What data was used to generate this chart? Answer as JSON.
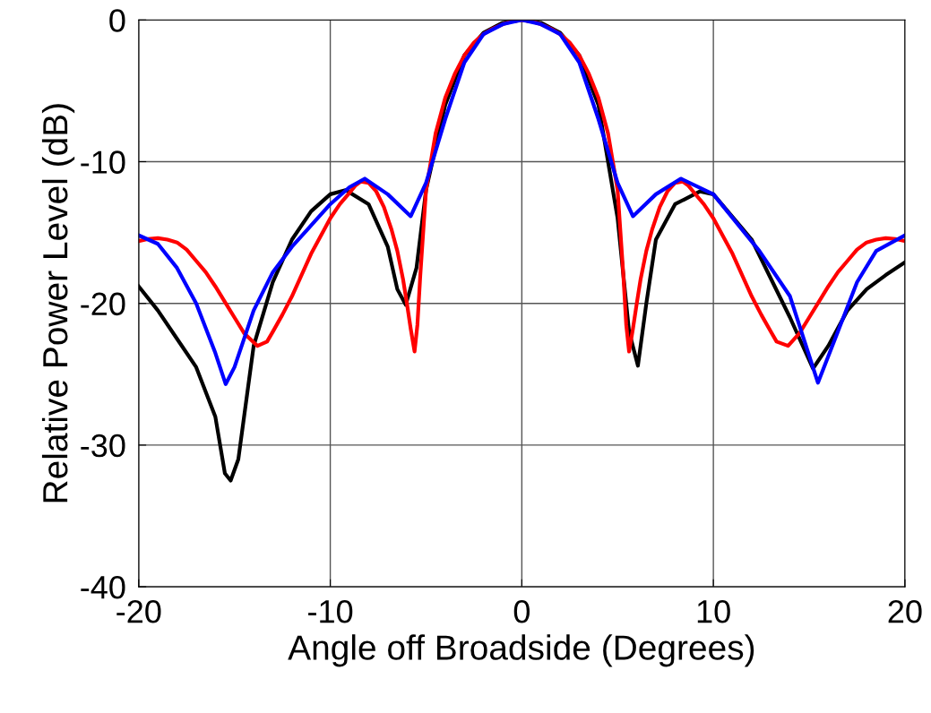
{
  "chart_data": {
    "type": "line",
    "xlabel": "Angle off Broadside (Degrees)",
    "ylabel": "Relative Power Level (dB)",
    "xlim": [
      -20,
      20
    ],
    "ylim": [
      -40,
      0
    ],
    "xticks": [
      -20,
      -10,
      0,
      10,
      20
    ],
    "yticks": [
      -40,
      -30,
      -20,
      -10,
      0
    ],
    "grid": true,
    "marker": "none",
    "line_style": "solid",
    "series": [
      {
        "color": "#000000",
        "x": [
          -20,
          -19,
          -18,
          -17,
          -16,
          -15.5,
          -15.2,
          -14.8,
          -14.3,
          -14,
          -13,
          -12,
          -11,
          -10,
          -9.2,
          -8,
          -7,
          -6.5,
          -6.06,
          -5.5,
          -5,
          -4,
          -3,
          -2,
          -1,
          0,
          1,
          2,
          3,
          4,
          5,
          5.6,
          6.06,
          6.5,
          7,
          8,
          9.3,
          10,
          12,
          14,
          15.2,
          16,
          17,
          18,
          19,
          20
        ],
        "values": [
          -18.8,
          -20.5,
          -22.5,
          -24.5,
          -28,
          -32,
          -32.5,
          -31,
          -26,
          -23,
          -18.5,
          -15.5,
          -13.5,
          -12.3,
          -12,
          -13,
          -16,
          -19,
          -20.1,
          -17.5,
          -12,
          -6,
          -2.5,
          -0.9,
          -0.2,
          0,
          -0.2,
          -0.9,
          -2.5,
          -6,
          -14,
          -22,
          -24.4,
          -20,
          -15.5,
          -13,
          -12.1,
          -12.3,
          -15.5,
          -21,
          -24.6,
          -23,
          -20.5,
          -19,
          -18,
          -17.1
        ]
      },
      {
        "color": "#ff0000",
        "x": [
          -20,
          -19.5,
          -19,
          -18.5,
          -18,
          -17.5,
          -17,
          -16.5,
          -16,
          -15.5,
          -15,
          -14.5,
          -13.8,
          -13.3,
          -13,
          -12.5,
          -12,
          -11,
          -10,
          -9.5,
          -9,
          -8.7,
          -8.4,
          -8,
          -7.6,
          -7.2,
          -6.8,
          -6.5,
          -6.2,
          -6,
          -5.8,
          -5.6,
          -5.45,
          -5.3,
          -5,
          -4.5,
          -4,
          -3.5,
          -3,
          -2.5,
          -2,
          -1.5,
          -1,
          -0.5,
          0,
          0.5,
          1,
          1.5,
          2,
          2.5,
          3,
          3.5,
          4,
          4.5,
          5,
          5.3,
          5.45,
          5.6,
          5.8,
          6,
          6.2,
          6.5,
          6.8,
          7.2,
          7.6,
          8,
          8.4,
          8.7,
          9,
          9.5,
          10,
          11,
          12,
          12.5,
          13,
          13.3,
          13.9,
          14.5,
          15,
          15.5,
          16,
          16.5,
          17,
          17.5,
          18,
          18.5,
          19,
          19.5,
          20
        ],
        "values": [
          -15.6,
          -15.45,
          -15.4,
          -15.5,
          -15.7,
          -16.2,
          -17,
          -17.8,
          -18.8,
          -19.9,
          -21,
          -22.1,
          -23,
          -22.7,
          -22,
          -20.8,
          -19.5,
          -16.5,
          -14,
          -13,
          -12.2,
          -11.7,
          -11.4,
          -11.5,
          -12.1,
          -13.2,
          -14.8,
          -16.3,
          -18.3,
          -20,
          -21.8,
          -23.4,
          -21.5,
          -18,
          -12,
          -8,
          -5.5,
          -3.8,
          -2.5,
          -1.6,
          -1,
          -0.6,
          -0.3,
          -0.1,
          0,
          -0.1,
          -0.3,
          -0.6,
          -1,
          -1.6,
          -2.5,
          -3.8,
          -5.5,
          -8,
          -12,
          -18,
          -21.5,
          -23.4,
          -21.8,
          -20,
          -18.3,
          -16.3,
          -14.8,
          -13.2,
          -12.1,
          -11.5,
          -11.4,
          -11.7,
          -12.2,
          -13,
          -14,
          -16.5,
          -19.5,
          -20.8,
          -22,
          -22.7,
          -23,
          -22.1,
          -21,
          -19.9,
          -18.8,
          -17.8,
          -17,
          -16.2,
          -15.7,
          -15.5,
          -15.4,
          -15.45,
          -15.6
        ]
      },
      {
        "color": "#0000ff",
        "x": [
          -20,
          -19,
          -18,
          -17,
          -16,
          -15.46,
          -15,
          -14,
          -13,
          -12,
          -11,
          -10,
          -9,
          -8.2,
          -7,
          -5.8,
          -5,
          -4,
          -3,
          -2,
          -1,
          0,
          1,
          2,
          3,
          4,
          5,
          5.8,
          7,
          8.3,
          10,
          12.4,
          14,
          15.46,
          16.5,
          17.5,
          18.5,
          20
        ],
        "values": [
          -15.2,
          -15.8,
          -17.5,
          -20,
          -23.5,
          -25.7,
          -24.5,
          -20.5,
          -17.8,
          -16,
          -14.5,
          -13,
          -11.8,
          -11.2,
          -12.3,
          -13.85,
          -11.5,
          -7,
          -3,
          -1,
          -0.3,
          0,
          -0.3,
          -1,
          -3,
          -7,
          -11.5,
          -13.85,
          -12.3,
          -11.2,
          -12.3,
          -16.3,
          -19.5,
          -25.6,
          -22,
          -18.5,
          -16.3,
          -15.2
        ]
      }
    ]
  }
}
